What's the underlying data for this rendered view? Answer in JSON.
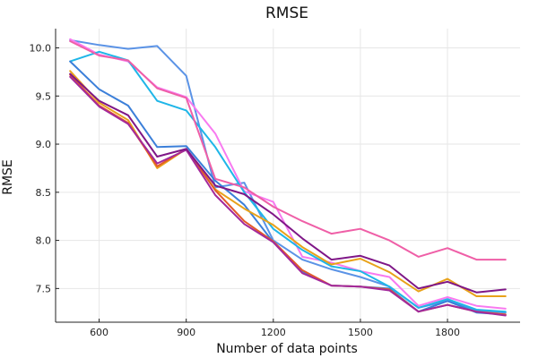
{
  "chart_data": {
    "type": "line",
    "title": "RMSE",
    "xlabel": "Number of data points",
    "ylabel": "RMSE",
    "xlim": [
      450,
      2050
    ],
    "ylim": [
      7.15,
      10.2
    ],
    "xticks": [
      600,
      900,
      1200,
      1500,
      1800
    ],
    "yticks": [
      7.5,
      8.0,
      8.5,
      9.0,
      9.5,
      10.0
    ],
    "ytick_labels": [
      "7.5",
      "8.0",
      "8.5",
      "9.0",
      "9.5",
      "10.0"
    ],
    "grid": true,
    "legend": "none",
    "x": [
      500,
      600,
      700,
      800,
      900,
      1000,
      1100,
      1200,
      1300,
      1400,
      1500,
      1600,
      1700,
      1800,
      1900,
      2000
    ],
    "series": [
      {
        "color": "#5b93e6",
        "values": [
          10.08,
          10.03,
          9.99,
          10.02,
          9.71,
          8.55,
          8.6,
          8.0,
          7.8,
          7.7,
          7.62,
          7.52,
          7.3,
          7.37,
          7.27,
          7.25
        ]
      },
      {
        "color": "#f87af0",
        "values": [
          10.09,
          9.93,
          9.86,
          9.59,
          9.49,
          9.11,
          8.51,
          8.4,
          7.83,
          7.77,
          7.68,
          7.62,
          7.32,
          7.41,
          7.32,
          7.29
        ]
      },
      {
        "color": "#1fb6e8",
        "values": [
          9.86,
          9.96,
          9.87,
          9.45,
          9.35,
          8.97,
          8.5,
          8.12,
          7.9,
          7.73,
          7.68,
          7.52,
          7.3,
          7.39,
          7.28,
          7.26
        ]
      },
      {
        "color": "#3b7fd9",
        "values": [
          9.86,
          9.57,
          9.4,
          8.97,
          8.98,
          8.62,
          8.37,
          7.98,
          7.68,
          7.53,
          7.52,
          7.5,
          7.26,
          7.37,
          7.25,
          7.23
        ]
      },
      {
        "color": "#e8a21a",
        "values": [
          9.76,
          9.43,
          9.25,
          8.75,
          8.95,
          8.53,
          8.33,
          8.16,
          7.93,
          7.75,
          7.81,
          7.67,
          7.47,
          7.6,
          7.42,
          7.42
        ]
      },
      {
        "color": "#e35a2a",
        "values": [
          9.72,
          9.4,
          9.22,
          8.77,
          8.95,
          8.52,
          8.2,
          7.99,
          7.69,
          7.53,
          7.52,
          7.49,
          7.26,
          7.33,
          7.26,
          7.23
        ]
      },
      {
        "color": "#a3299b",
        "values": [
          9.7,
          9.39,
          9.21,
          8.8,
          8.94,
          8.47,
          8.17,
          7.98,
          7.66,
          7.53,
          7.52,
          7.48,
          7.26,
          7.33,
          7.26,
          7.22
        ]
      },
      {
        "color": "#7f1787",
        "values": [
          9.73,
          9.45,
          9.3,
          8.87,
          8.95,
          8.57,
          8.48,
          8.27,
          8.02,
          7.8,
          7.84,
          7.74,
          7.5,
          7.57,
          7.46,
          7.49
        ]
      },
      {
        "color": "#ef5fa7",
        "values": [
          10.07,
          9.92,
          9.87,
          9.58,
          9.48,
          8.64,
          8.55,
          8.35,
          8.2,
          8.07,
          8.12,
          8.0,
          7.83,
          7.92,
          7.8,
          7.8
        ]
      }
    ]
  }
}
